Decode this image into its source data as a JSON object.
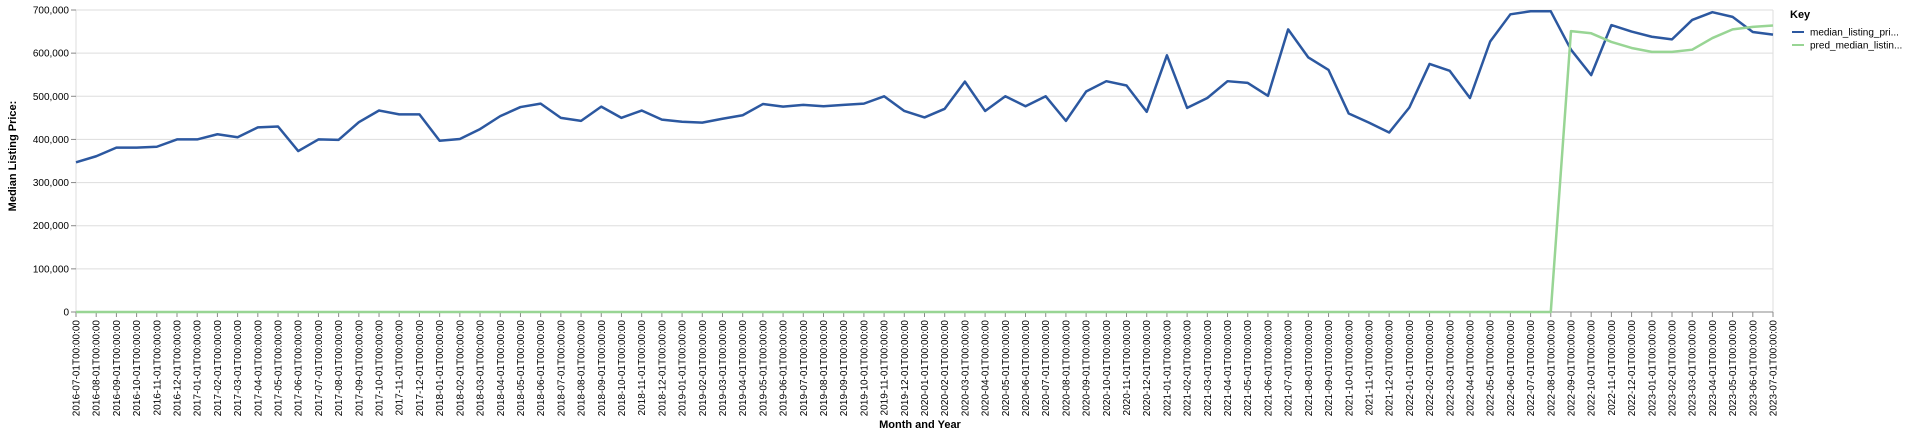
{
  "chart_data": {
    "type": "line",
    "xlabel": "Month and Year",
    "ylabel": "Median Listing Price:",
    "ylim": [
      0,
      700000
    ],
    "y_ticks": [
      "0",
      "100,000",
      "200,000",
      "300,000",
      "400,000",
      "500,000",
      "600,000",
      "700,000"
    ],
    "grid": "horizontal",
    "legend": {
      "title": "Key",
      "position": "right"
    },
    "x": [
      "2016-07-01T00:00:00",
      "2016-08-01T00:00:00",
      "2016-09-01T00:00:00",
      "2016-10-01T00:00:00",
      "2016-11-01T00:00:00",
      "2016-12-01T00:00:00",
      "2017-01-01T00:00:00",
      "2017-02-01T00:00:00",
      "2017-03-01T00:00:00",
      "2017-04-01T00:00:00",
      "2017-05-01T00:00:00",
      "2017-06-01T00:00:00",
      "2017-07-01T00:00:00",
      "2017-08-01T00:00:00",
      "2017-09-01T00:00:00",
      "2017-10-01T00:00:00",
      "2017-11-01T00:00:00",
      "2017-12-01T00:00:00",
      "2018-01-01T00:00:00",
      "2018-02-01T00:00:00",
      "2018-03-01T00:00:00",
      "2018-04-01T00:00:00",
      "2018-05-01T00:00:00",
      "2018-06-01T00:00:00",
      "2018-07-01T00:00:00",
      "2018-08-01T00:00:00",
      "2018-09-01T00:00:00",
      "2018-10-01T00:00:00",
      "2018-11-01T00:00:00",
      "2018-12-01T00:00:00",
      "2019-01-01T00:00:00",
      "2019-02-01T00:00:00",
      "2019-03-01T00:00:00",
      "2019-04-01T00:00:00",
      "2019-05-01T00:00:00",
      "2019-06-01T00:00:00",
      "2019-07-01T00:00:00",
      "2019-08-01T00:00:00",
      "2019-09-01T00:00:00",
      "2019-10-01T00:00:00",
      "2019-11-01T00:00:00",
      "2019-12-01T00:00:00",
      "2020-01-01T00:00:00",
      "2020-02-01T00:00:00",
      "2020-03-01T00:00:00",
      "2020-04-01T00:00:00",
      "2020-05-01T00:00:00",
      "2020-06-01T00:00:00",
      "2020-07-01T00:00:00",
      "2020-08-01T00:00:00",
      "2020-09-01T00:00:00",
      "2020-10-01T00:00:00",
      "2020-11-01T00:00:00",
      "2020-12-01T00:00:00",
      "2021-01-01T00:00:00",
      "2021-02-01T00:00:00",
      "2021-03-01T00:00:00",
      "2021-04-01T00:00:00",
      "2021-05-01T00:00:00",
      "2021-06-01T00:00:00",
      "2021-07-01T00:00:00",
      "2021-08-01T00:00:00",
      "2021-09-01T00:00:00",
      "2021-10-01T00:00:00",
      "2021-11-01T00:00:00",
      "2021-12-01T00:00:00",
      "2022-01-01T00:00:00",
      "2022-02-01T00:00:00",
      "2022-03-01T00:00:00",
      "2022-04-01T00:00:00",
      "2022-05-01T00:00:00",
      "2022-06-01T00:00:00",
      "2022-07-01T00:00:00",
      "2022-08-01T00:00:00",
      "2022-09-01T00:00:00",
      "2022-10-01T00:00:00",
      "2022-11-01T00:00:00",
      "2022-12-01T00:00:00",
      "2023-01-01T00:00:00",
      "2023-02-01T00:00:00",
      "2023-03-01T00:00:00",
      "2023-04-01T00:00:00",
      "2023-05-01T00:00:00",
      "2023-06-01T00:00:00",
      "2023-07-01T00:00:00"
    ],
    "series": [
      {
        "name": "median_listing_pri...",
        "color": "#2c58a0",
        "values": [
          347000,
          361000,
          381000,
          381000,
          383000,
          400000,
          400000,
          412000,
          405000,
          428000,
          430000,
          373000,
          400000,
          399000,
          440000,
          467000,
          458000,
          458000,
          397000,
          401000,
          424000,
          454000,
          475000,
          483000,
          450000,
          443000,
          476000,
          450000,
          467000,
          446000,
          441000,
          439000,
          448000,
          456000,
          482000,
          476000,
          480000,
          477000,
          480000,
          483000,
          500000,
          466000,
          451000,
          471000,
          534000,
          466000,
          500000,
          477000,
          500000,
          443000,
          511000,
          535000,
          525000,
          464000,
          595000,
          473000,
          496000,
          535000,
          531000,
          501000,
          655000,
          590000,
          561000,
          460000,
          439000,
          416000,
          474000,
          575000,
          559000,
          496000,
          627000,
          690000,
          697000,
          697000,
          608000,
          549000,
          665000,
          650000,
          638000,
          632000,
          677000,
          695000,
          684000,
          649000,
          643000
        ]
      },
      {
        "name": "pred_median_listin...",
        "color": "#98d594",
        "values": [
          0,
          0,
          0,
          0,
          0,
          0,
          0,
          0,
          0,
          0,
          0,
          0,
          0,
          0,
          0,
          0,
          0,
          0,
          0,
          0,
          0,
          0,
          0,
          0,
          0,
          0,
          0,
          0,
          0,
          0,
          0,
          0,
          0,
          0,
          0,
          0,
          0,
          0,
          0,
          0,
          0,
          0,
          0,
          0,
          0,
          0,
          0,
          0,
          0,
          0,
          0,
          0,
          0,
          0,
          0,
          0,
          0,
          0,
          0,
          0,
          0,
          0,
          0,
          0,
          0,
          0,
          0,
          0,
          0,
          0,
          0,
          0,
          0,
          0,
          651000,
          646000,
          626000,
          612000,
          603000,
          603000,
          608000,
          635000,
          655000,
          661000,
          664000
        ]
      }
    ]
  }
}
